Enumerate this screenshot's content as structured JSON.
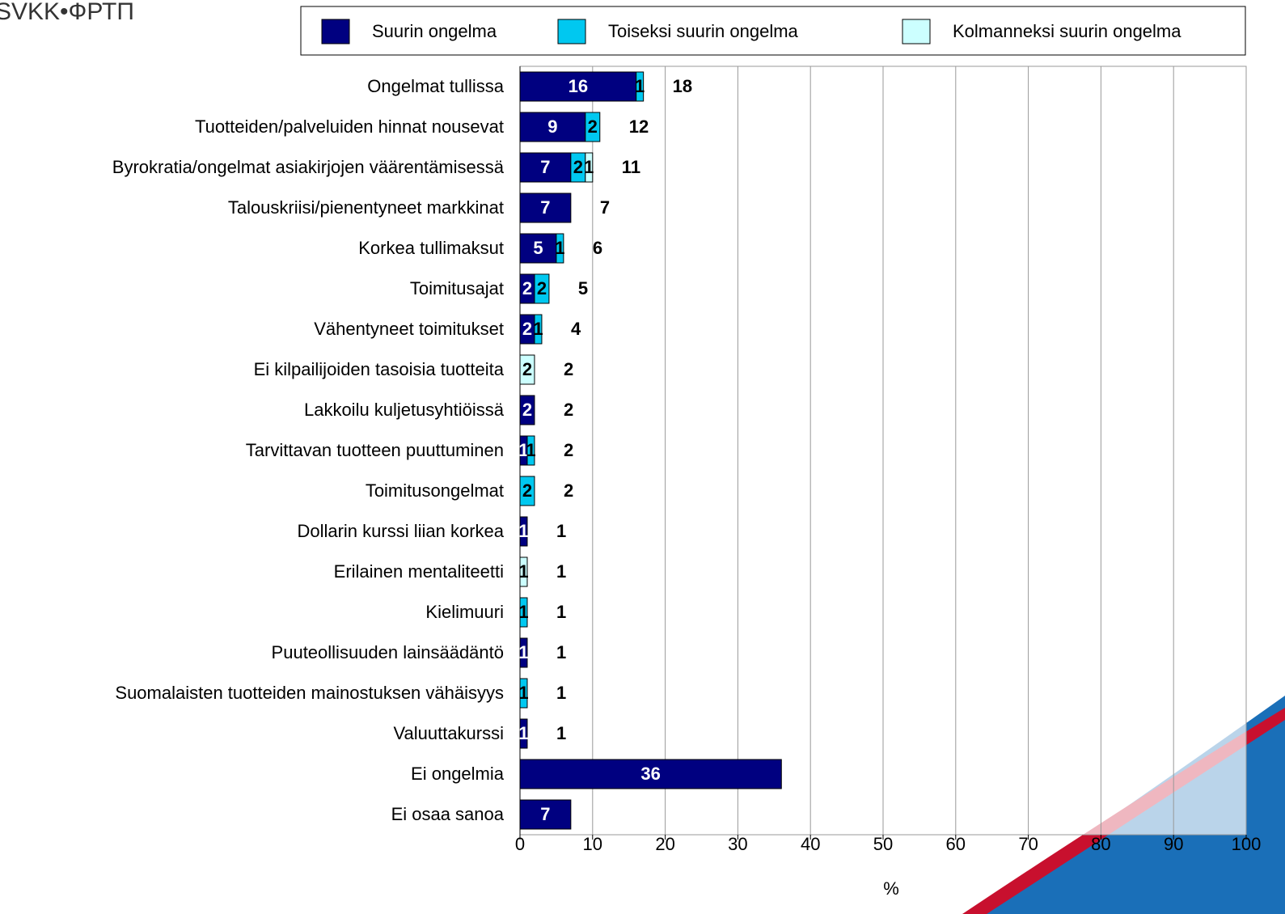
{
  "logo": "SVKK•ФРТП",
  "chart_data": {
    "type": "stacked-barh",
    "xlabel": "%",
    "categories": [
      "Ongelmat tullissa",
      "Tuotteiden/palveluiden hinnat nousevat",
      "Byrokratia/ongelmat asiakirjojen väärentämisessä",
      "Talouskriisi/pienentyneet markkinat",
      "Korkea tullimaksut",
      "Toimitusajat",
      "Vähentyneet toimitukset",
      "Ei kilpailijoiden tasoisia tuotteita",
      "Lakkoilu kuljetusyhtiöissä",
      "Tarvittavan tuotteen puuttuminen",
      "Toimitusongelmat",
      "Dollarin kurssi liian korkea",
      "Erilainen mentaliteetti",
      "Kielimuuri",
      "Puuteollisuuden lainsäädäntö",
      "Suomalaisten tuotteiden mainostuksen vähäisyys",
      "Valuuttakurssi",
      "Ei ongelmia",
      "Ei osaa sanoa"
    ],
    "series": [
      {
        "name": "Suurin ongelma",
        "color": "#000080",
        "label_color": "#ffffff",
        "values": [
          16,
          9,
          7,
          7,
          5,
          2,
          2,
          null,
          2,
          1,
          null,
          1,
          null,
          null,
          1,
          null,
          1,
          36,
          7
        ]
      },
      {
        "name": "Toiseksi suurin ongelma",
        "color": "#00c8f0",
        "label_color": "#000000",
        "values": [
          1,
          2,
          2,
          null,
          1,
          2,
          1,
          null,
          null,
          1,
          2,
          null,
          null,
          1,
          null,
          1,
          null,
          null,
          null
        ]
      },
      {
        "name": "Kolmanneksi suurin ongelma",
        "color": "#ccffff",
        "label_color": "#000000",
        "values": [
          null,
          null,
          1,
          null,
          null,
          null,
          null,
          2,
          null,
          null,
          null,
          null,
          1,
          null,
          null,
          null,
          null,
          null,
          null
        ]
      }
    ],
    "totals": [
      18,
      12,
      11,
      7,
      6,
      5,
      4,
      2,
      2,
      2,
      2,
      1,
      1,
      1,
      1,
      1,
      1,
      null,
      null
    ],
    "xlim": [
      0,
      100
    ],
    "xticks": [
      0,
      10,
      20,
      30,
      40,
      50,
      60,
      70,
      80,
      90,
      100
    ],
    "grid": true
  }
}
